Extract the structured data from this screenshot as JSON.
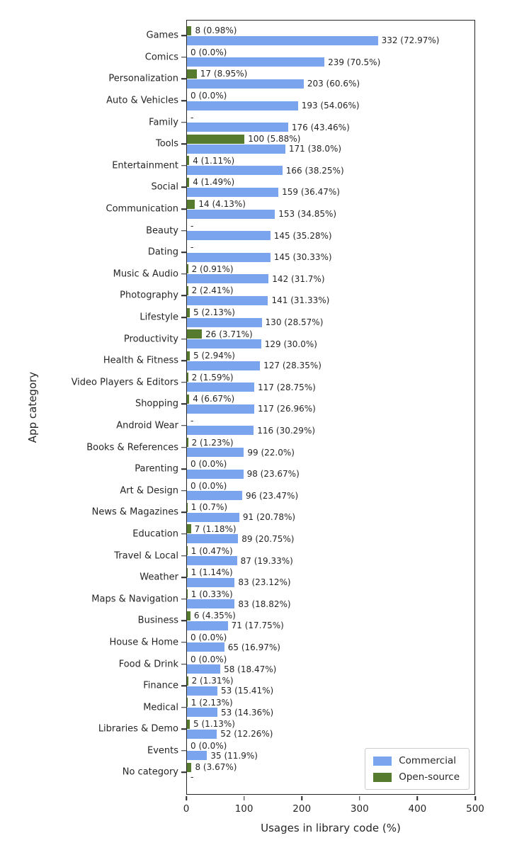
{
  "chart_data": {
    "type": "bar",
    "orientation": "horizontal",
    "title": "",
    "xlabel": "Usages in library code (%)",
    "ylabel": "App category",
    "xlim": [
      0,
      500
    ],
    "x_ticks": [
      0,
      100,
      200,
      300,
      400,
      500
    ],
    "grid": false,
    "legend": {
      "position": "lower right",
      "entries": [
        {
          "name": "Commercial",
          "color": "#7aa5ee"
        },
        {
          "name": "Open-source",
          "color": "#567a2e"
        }
      ]
    },
    "categories": [
      "Games",
      "Comics",
      "Personalization",
      "Auto & Vehicles",
      "Family",
      "Tools",
      "Entertainment",
      "Social",
      "Communication",
      "Beauty",
      "Dating",
      "Music & Audio",
      "Photography",
      "Lifestyle",
      "Productivity",
      "Health & Fitness",
      "Video Players & Editors",
      "Shopping",
      "Android Wear",
      "Books & References",
      "Parenting",
      "Art & Design",
      "News & Magazines",
      "Education",
      "Travel & Local",
      "Weather",
      "Maps & Navigation",
      "Business",
      "House & Home",
      "Food & Drink",
      "Finance",
      "Medical",
      "Libraries & Demo",
      "Events",
      "No category"
    ],
    "series": [
      {
        "name": "Open-source",
        "color": "#567a2e",
        "values": [
          8,
          0,
          17,
          0,
          null,
          100,
          4,
          4,
          14,
          null,
          null,
          2,
          2,
          5,
          26,
          5,
          2,
          4,
          null,
          2,
          0,
          0,
          1,
          7,
          1,
          1,
          1,
          6,
          0,
          0,
          2,
          1,
          5,
          0,
          8
        ],
        "labels": [
          "8 (0.98%)",
          "0 (0.0%)",
          "17 (8.95%)",
          "0 (0.0%)",
          "-",
          "100 (5.88%)",
          "4 (1.11%)",
          "4 (1.49%)",
          "14 (4.13%)",
          "-",
          "-",
          "2 (0.91%)",
          "2 (2.41%)",
          "5 (2.13%)",
          "26 (3.71%)",
          "5 (2.94%)",
          "2 (1.59%)",
          "4 (6.67%)",
          "-",
          "2 (1.23%)",
          "0 (0.0%)",
          "0 (0.0%)",
          "1 (0.7%)",
          "7 (1.18%)",
          "1 (0.47%)",
          "1 (1.14%)",
          "1 (0.33%)",
          "6 (4.35%)",
          "0 (0.0%)",
          "0 (0.0%)",
          "2 (1.31%)",
          "1 (2.13%)",
          "5 (1.13%)",
          "0 (0.0%)",
          "8 (3.67%)"
        ]
      },
      {
        "name": "Commercial",
        "color": "#7aa5ee",
        "values": [
          332,
          239,
          203,
          193,
          176,
          171,
          166,
          159,
          153,
          145,
          145,
          142,
          141,
          130,
          129,
          127,
          117,
          117,
          116,
          99,
          98,
          96,
          91,
          89,
          87,
          83,
          83,
          71,
          65,
          58,
          53,
          53,
          52,
          35,
          null
        ],
        "labels": [
          "332 (72.97%)",
          "239 (70.5%)",
          "203 (60.6%)",
          "193 (54.06%)",
          "176 (43.46%)",
          "171 (38.0%)",
          "166 (38.25%)",
          "159 (36.47%)",
          "153 (34.85%)",
          "145 (35.28%)",
          "145 (30.33%)",
          "142 (31.7%)",
          "141 (31.33%)",
          "130 (28.57%)",
          "129 (30.0%)",
          "127 (28.35%)",
          "117 (28.75%)",
          "117 (26.96%)",
          "116 (30.29%)",
          "99 (22.0%)",
          "98 (23.67%)",
          "96 (23.47%)",
          "91 (20.78%)",
          "89 (20.75%)",
          "87 (19.33%)",
          "83 (23.12%)",
          "83 (18.82%)",
          "71 (17.75%)",
          "65 (16.97%)",
          "58 (18.47%)",
          "53 (15.41%)",
          "53 (14.36%)",
          "52 (12.26%)",
          "35 (11.9%)",
          "-"
        ]
      }
    ]
  }
}
